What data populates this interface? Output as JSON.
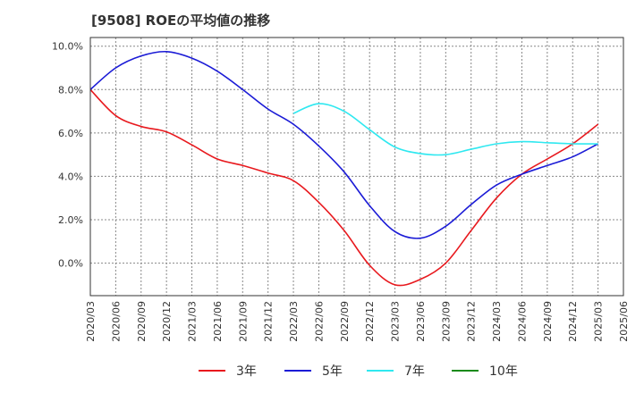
{
  "chart_data": {
    "type": "line",
    "title": "[9508]  ROEの平均値の推移",
    "xlabel": "",
    "ylabel": "",
    "ylim": [
      -1.5,
      10.4
    ],
    "yticks": [
      {
        "value": 10,
        "label": "10.0%"
      },
      {
        "value": 8,
        "label": "8.0%"
      },
      {
        "value": 6,
        "label": "6.0%"
      },
      {
        "value": 4,
        "label": "4.0%"
      },
      {
        "value": 2,
        "label": "2.0%"
      },
      {
        "value": 0,
        "label": "0.0%"
      }
    ],
    "categories": [
      "2020/03",
      "2020/06",
      "2020/09",
      "2020/12",
      "2021/03",
      "2021/06",
      "2021/09",
      "2021/12",
      "2022/03",
      "2022/06",
      "2022/09",
      "2022/12",
      "2023/03",
      "2023/06",
      "2023/09",
      "2023/12",
      "2024/03",
      "2024/06",
      "2024/09",
      "2024/12",
      "2025/03",
      "2025/06"
    ],
    "grid": true,
    "legend_position": "bottom",
    "series": [
      {
        "name": "3年",
        "color": "#e8191e",
        "values": [
          8.0,
          6.8,
          6.3,
          6.05,
          5.45,
          4.8,
          4.5,
          4.15,
          3.8,
          2.8,
          1.5,
          -0.1,
          -1.0,
          -0.75,
          0.0,
          1.5,
          3.0,
          4.1,
          4.8,
          5.5,
          6.4,
          null
        ]
      },
      {
        "name": "5年",
        "color": "#1b1bd6",
        "values": [
          8.0,
          9.0,
          9.55,
          9.75,
          9.45,
          8.85,
          8.0,
          7.1,
          6.4,
          5.4,
          4.2,
          2.65,
          1.45,
          1.15,
          1.7,
          2.7,
          3.6,
          4.1,
          4.5,
          4.9,
          5.5,
          null
        ]
      },
      {
        "name": "7年",
        "color": "#2fe8f0",
        "values": [
          null,
          null,
          null,
          null,
          null,
          null,
          null,
          null,
          6.9,
          7.35,
          7.0,
          6.15,
          5.35,
          5.05,
          5.0,
          5.25,
          5.5,
          5.6,
          5.55,
          5.5,
          5.5,
          null
        ]
      },
      {
        "name": "10年",
        "color": "#1a8a1a",
        "values": [
          null,
          null,
          null,
          null,
          null,
          null,
          null,
          null,
          null,
          null,
          null,
          null,
          null,
          null,
          null,
          null,
          null,
          null,
          null,
          null,
          null,
          null
        ]
      }
    ]
  }
}
